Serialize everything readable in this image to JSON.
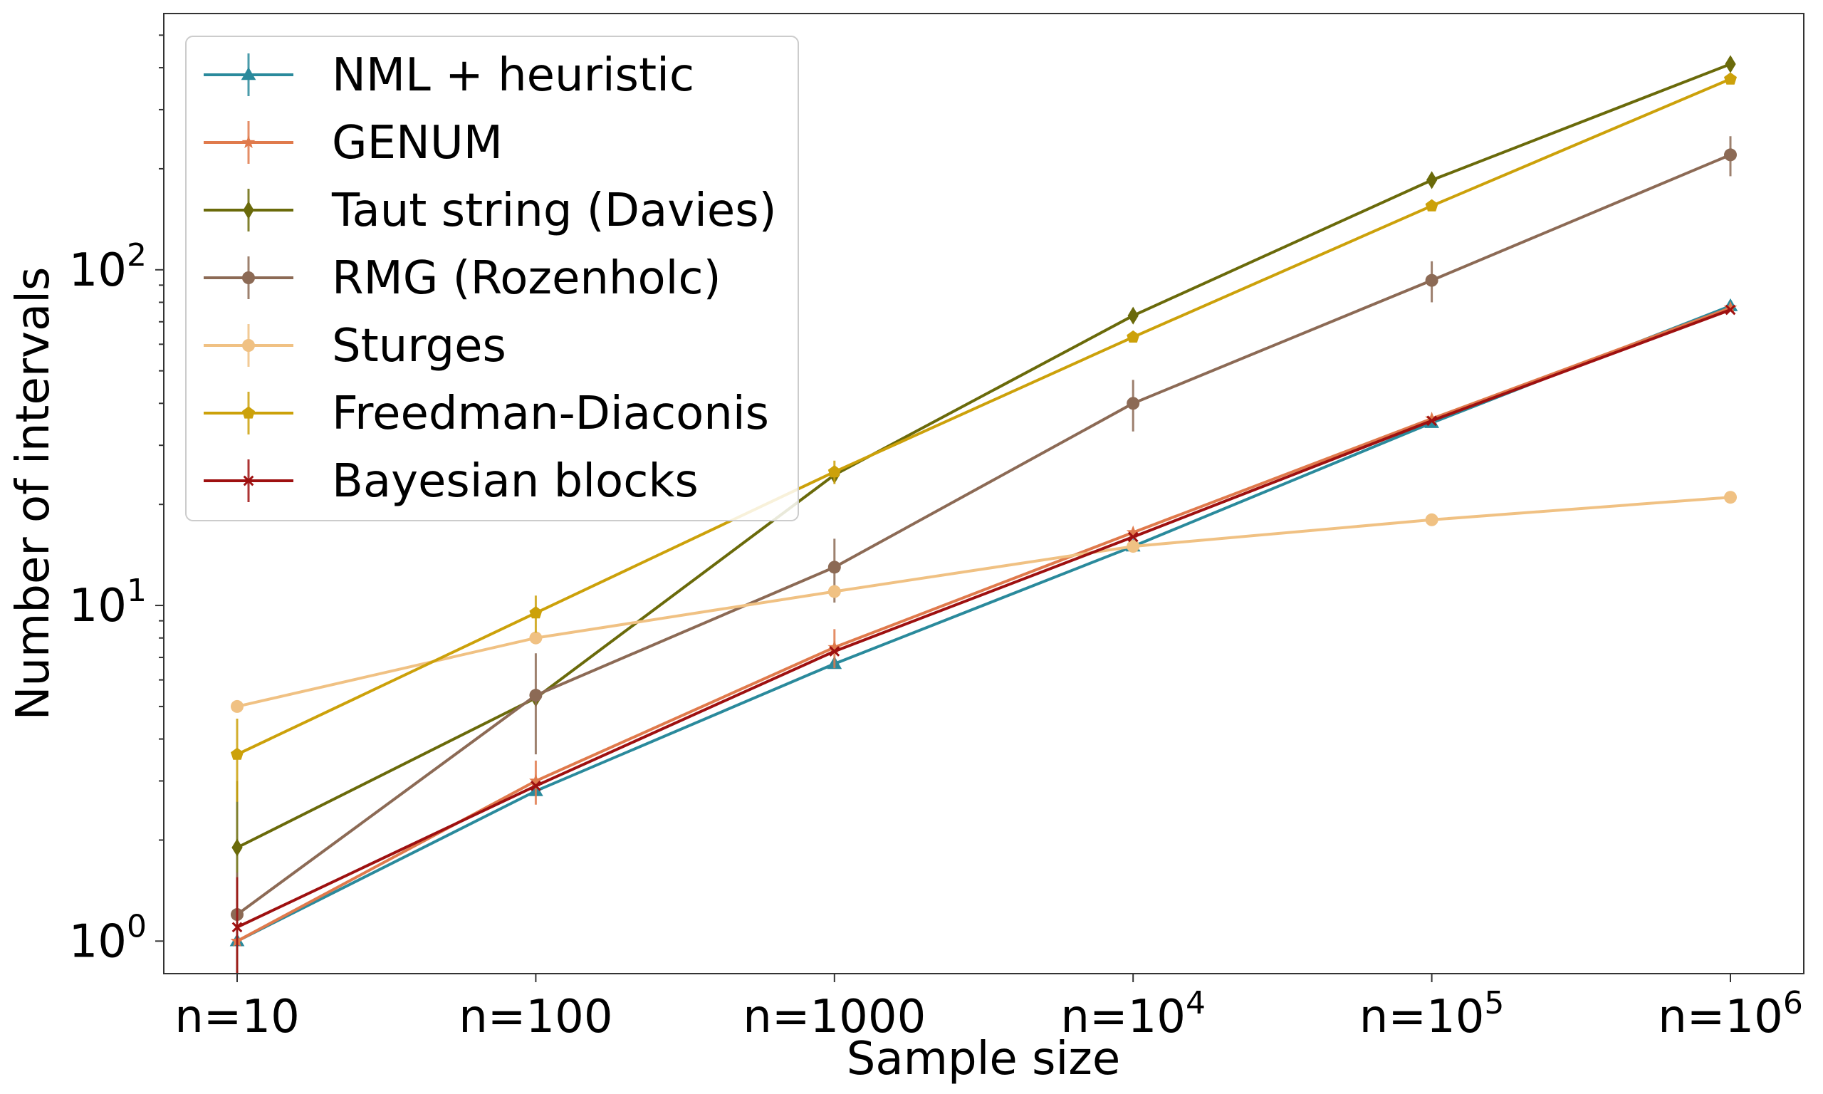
{
  "chart_data": {
    "type": "line",
    "xlabel": "Sample size",
    "ylabel": "Number of intervals",
    "y_scale": "log",
    "ylim": [
      0.8,
      580
    ],
    "yticks": [
      {
        "value": 1,
        "base": "10",
        "exp": "0"
      },
      {
        "value": 10,
        "base": "10",
        "exp": "1"
      },
      {
        "value": 100,
        "base": "10",
        "exp": "2"
      }
    ],
    "x": [
      10,
      100,
      1000,
      10000,
      100000,
      1000000
    ],
    "xticks": [
      {
        "base": "n=10",
        "exp": ""
      },
      {
        "base": "n=100",
        "exp": ""
      },
      {
        "base": "n=1000",
        "exp": ""
      },
      {
        "base": "n=10",
        "exp": "4"
      },
      {
        "base": "n=10",
        "exp": "5"
      },
      {
        "base": "n=10",
        "exp": "6"
      }
    ],
    "grid": false,
    "legend_position": "top-left",
    "series": [
      {
        "name": "NML + heuristic",
        "color": "#2a8a9c",
        "marker": "triangle",
        "values": [
          1.0,
          2.8,
          6.7,
          15,
          35,
          78
        ],
        "err": [
          0,
          0,
          0,
          0,
          0,
          0
        ]
      },
      {
        "name": "GENUM",
        "color": "#e07a4c",
        "marker": "star",
        "values": [
          1.0,
          3.0,
          7.5,
          16.5,
          36,
          77
        ],
        "err": [
          0,
          0.45,
          1.0,
          0,
          0,
          0
        ]
      },
      {
        "name": "Taut string (Davies)",
        "color": "#6a6a0a",
        "marker": "diamond",
        "values": [
          1.9,
          5.3,
          24.5,
          73,
          185,
          410
        ],
        "err": [
          1.1,
          0,
          0,
          0,
          0,
          0
        ]
      },
      {
        "name": "RMG (Rozenholc)",
        "color": "#8c6a55",
        "marker": "circle",
        "values": [
          1.2,
          5.4,
          13,
          40,
          93,
          220
        ],
        "err": [
          0.4,
          1.8,
          2.8,
          7,
          13,
          30
        ]
      },
      {
        "name": "Sturges",
        "color": "#f0c183",
        "marker": "circle",
        "values": [
          5,
          8,
          11,
          15,
          18,
          21
        ],
        "err": [
          0,
          0,
          0,
          0,
          0,
          0
        ]
      },
      {
        "name": "Freedman-Diaconis",
        "color": "#cca10a",
        "marker": "pentagon",
        "values": [
          3.6,
          9.5,
          25,
          63,
          155,
          370
        ],
        "err": [
          1.0,
          1.2,
          2,
          0,
          0,
          0
        ]
      },
      {
        "name": "Bayesian blocks",
        "color": "#9e1010",
        "marker": "x",
        "values": [
          1.1,
          2.9,
          7.3,
          16,
          35.5,
          76
        ],
        "err": [
          0.45,
          0,
          0,
          0,
          0,
          0
        ]
      }
    ]
  }
}
